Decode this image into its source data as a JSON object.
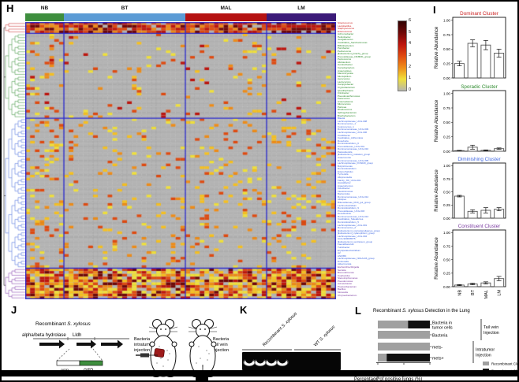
{
  "figure": {
    "panel_labels": {
      "h": "H",
      "i": "I",
      "j": "J",
      "k": "K",
      "l": "L"
    }
  },
  "heatmap": {
    "column_groups": [
      {
        "label": "NB",
        "color": "#3e8e3e",
        "cols": 8
      },
      {
        "label": "BT",
        "color": "#5b9bd5",
        "cols": 25
      },
      {
        "label": "MAL",
        "color": "#b51212",
        "cols": 17
      },
      {
        "label": "LM",
        "color": "#3b1a78",
        "cols": 14
      }
    ],
    "separator_color": "#2a2ad0",
    "cell_colors": {
      "0": "#b4b4b4",
      "1": "#f0e03a",
      "2": "#f6c020",
      "3": "#ee8c18",
      "4": "#df4a10",
      "5": "#bd150e",
      "6": "#6f0808"
    },
    "colorbar": {
      "ticks": [
        "6",
        "5",
        "4",
        "3",
        "2",
        "1",
        "0"
      ],
      "gradient": [
        "#300202",
        "#6f0808",
        "#bd150e",
        "#df4a10",
        "#ee8c18",
        "#f0e03a",
        "#b7b7ae"
      ]
    },
    "clusters": [
      {
        "name": "Dominant",
        "label_color": "#cc2222",
        "dendro_color": "#cc4444",
        "vmin": 3,
        "vmax": 6,
        "density": [
          0.93,
          0.9,
          0.9,
          0.92
        ],
        "taxa": [
          "Streptococcus",
          "Lactobacillus",
          "Staphylococcus",
          "Enterococcus"
        ]
      },
      {
        "name": "Sporadic",
        "label_color": "#2e8b2e",
        "dendro_color": "#4a9a4a",
        "vmin": 1,
        "vmax": 5,
        "density": [
          0.16,
          0.06,
          0.09,
          0.06
        ],
        "taxa": [
          "Achromobacter",
          "Helicobacter",
          "Jeotgalicoccus",
          "Candidatus_Saccharimonas",
          "Bifidobacterium",
          "Parvibacter",
          "Pediococcus",
          "[Eubacterium]_brachy_group",
          "Prevotellaceae_NK3B31_group",
          "Peptococcus",
          "Allobaculum",
          "Gordonibacter",
          "Carnobacterium",
          "Anaerostipes",
          "Marvinbryantia",
          "Mucispirillum",
          "Aerococcus",
          "Lactococcus",
          "Campylobacter",
          "Cryptobacterium",
          "Quadrisphaera",
          "Citrobacter",
          "Pseudoxanthomonas",
          "Paracoccus",
          "Anaeroplasma",
          "Micrococcus",
          "Pantoea",
          "Rhodococcus",
          "Sphingobacterium",
          "Brachybacterium"
        ]
      },
      {
        "name": "Diminishing",
        "label_color": "#4169e1",
        "dendro_color": "#5577dd",
        "vmin": 1,
        "vmax": 4,
        "density": [
          0.22,
          0.1,
          0.13,
          0.15
        ],
        "taxa": [
          "Blautia",
          "Lachnospiraceae_UCG-008",
          "Ruminococcus_1",
          "Coprococcus_1",
          "Ruminococcaceae_UCG-009",
          "Lachnospiraceae_UCG-006",
          "Oscillibacter",
          "Candidatus_Arthromitus",
          "Roseburia",
          "Ruminiclostridium_6",
          "Prevotellaceae_UCG-001",
          "Ruminococcaceae_UCG-010",
          "Parasutterella",
          "[Eubacterium]_nodatum_group",
          "Anaerovorax",
          "Ruminococcaceae_UCG-005",
          "Lachnospiraceae_FCS020_group",
          "Butyricimonas",
          "Ruminiclostridium",
          "Enterorhabdus",
          "Tyzzerella",
          "Alloprevotella",
          "Family_XIII_UCG-001",
          "Acetatifactor",
          "Anaerotruncus",
          "Odoribacter",
          "Intestinimonas",
          "Bacteroides",
          "Ruminococcaceae_UCG-014",
          "Alistipes",
          "Rikenellaceae_RC9_gut_group",
          "Lachnoclostridium",
          "Ruminiclostridium_9",
          "Prevotellaceae_UCG-003",
          "Desulfovibrio",
          "Ruminococcaceae_UCG-013",
          "Candidatus_Soleaferrea",
          "Ruminiclostridium_5",
          "Lachnospiraceae_UCG-001",
          "Ruminococcus_2",
          "[Eubacterium]_coprostanoligenes_group",
          "[Eubacterium]_xylanophilum_group",
          "Lachnospiraceae_UCG-004",
          "GCA-900066575",
          "[Eubacterium]_ventriosum_group",
          "Faecalibaculum",
          "Turicibacter",
          "Erysipelatoclostridium",
          "A2",
          "ASF356",
          "Lachnospiraceae_NK4A136_group",
          "Dubosiella",
          "Akkermansia"
        ]
      },
      {
        "name": "Constituent",
        "label_color": "#7a3aa0",
        "dendro_color": "#8a4ab0",
        "vmin": 1,
        "vmax": 6,
        "density": [
          0.88,
          0.85,
          0.86,
          0.88
        ],
        "taxa": [
          "Escherichia-Shigella",
          "Serratia",
          "Brevundimonas",
          "Cupriavidus",
          "Stenotrophomonas",
          "Pseudomonas",
          "Acinetobacter",
          "Propionibacterium",
          "Bacillus",
          "Moraxella",
          "Chryseobacterium"
        ]
      }
    ]
  },
  "chart_data": [
    {
      "type": "bar",
      "title": "Dominant Cluster",
      "title_color": "#cc2222",
      "ylabel": "Relative Abundance",
      "categories": [
        "NB",
        "BT",
        "MAL",
        "LM"
      ],
      "values": [
        0.25,
        0.6,
        0.57,
        0.43
      ],
      "errors": [
        0.04,
        0.06,
        0.08,
        0.07
      ],
      "yticks": [
        "0.00",
        "0.25",
        "0.50",
        "0.75",
        "1.00"
      ],
      "ylim": [
        0,
        1.05
      ]
    },
    {
      "type": "bar",
      "title": "Sporadic Cluster",
      "title_color": "#2e8b2e",
      "ylabel": "Relative Abundance",
      "categories": [
        "NB",
        "BT",
        "MAL",
        "LM"
      ],
      "values": [
        0.01,
        0.07,
        0.015,
        0.045
      ],
      "errors": [
        0.005,
        0.035,
        0.008,
        0.012
      ],
      "yticks": [
        "0.00",
        "0.25",
        "0.50",
        "0.75",
        "1.00"
      ],
      "ylim": [
        0,
        1.05
      ]
    },
    {
      "type": "bar",
      "title": "Diminishing Cluster",
      "title_color": "#4169e1",
      "ylabel": "Relative Abundance",
      "categories": [
        "NB",
        "BT",
        "MAL",
        "LM"
      ],
      "values": [
        0.42,
        0.13,
        0.15,
        0.17
      ],
      "errors": [
        0.015,
        0.03,
        0.05,
        0.03
      ],
      "yticks": [
        "0.00",
        "0.25",
        "0.50",
        "0.75",
        "1.00"
      ],
      "ylim": [
        0,
        1.05
      ]
    },
    {
      "type": "bar",
      "title": "Constituent Cluster",
      "title_color": "#7a3aa0",
      "ylabel": "Relative Abundance",
      "categories": [
        "NB",
        "BT",
        "MAL",
        "LM"
      ],
      "values": [
        0.03,
        0.05,
        0.07,
        0.15
      ],
      "errors": [
        0.01,
        0.015,
        0.02,
        0.04
      ],
      "yticks": [
        "0.00",
        "0.25",
        "0.50",
        "0.75",
        "1.00"
      ],
      "ylim": [
        0,
        1.05
      ]
    },
    {
      "type": "heatmap",
      "column_groups": [
        "NB",
        "BT",
        "MAL",
        "LM"
      ],
      "value_range": [
        0,
        6
      ],
      "row_cluster_sizes": {
        "Dominant": 4,
        "Sporadic": 30,
        "Diminishing": 53,
        "Constituent": 11
      }
    }
  ],
  "construct": {
    "title_prefix": "Recombinant ",
    "title_species": "S. xylosus",
    "gene1": "alpha/beta hydrolase",
    "gene2": "Lldh",
    "insert_left": "erm",
    "insert_right": "GFP",
    "gfp_color": "#3e8e3e",
    "tumor_color": "#9e1b1b",
    "mouse1_caption": [
      "Bacteria",
      "intratumor",
      "injection"
    ],
    "mouse2_caption": [
      "Bacteria",
      "tail vein",
      "injection"
    ]
  },
  "gel": {
    "group1_prefix": "Recombinant ",
    "group1_species": "S. xylosus",
    "group2_prefix": "WT ",
    "group2_species": "S. xylosus",
    "bands": 4
  },
  "lung_detection": {
    "title_prefix": "Recombinant ",
    "title_species": "S. xylosus",
    "title_suffix": " Detection in the Lung",
    "rows": [
      {
        "label_lines": [
          "Bacteria in",
          "tumor cells"
        ],
        "clone_neg": 58,
        "clone_pos": 42
      },
      {
        "label_lines": [
          "Bacteria"
        ],
        "clone_neg": 100,
        "clone_pos": 0
      },
      {
        "label_lines": [
          "mets-"
        ],
        "clone_neg": 100,
        "clone_pos": 0
      },
      {
        "label_lines": [
          "mets+"
        ],
        "clone_neg": 17,
        "clone_pos": 83
      }
    ],
    "group_brackets": [
      {
        "lines": [
          "Tail vein",
          "Injection"
        ],
        "rows": [
          0,
          1
        ]
      },
      {
        "lines": [
          "Intratumor",
          "Injection"
        ],
        "rows": [
          2,
          3
        ]
      }
    ],
    "xticks": [
      "100",
      "50",
      "0"
    ],
    "xlabel": "Percentage of positive lungs (%)",
    "legend": [
      {
        "label": "Recombinant Clone -",
        "color": "#a0a0a0"
      },
      {
        "label": "Recombinant Clone +",
        "color": "#111111"
      }
    ]
  }
}
